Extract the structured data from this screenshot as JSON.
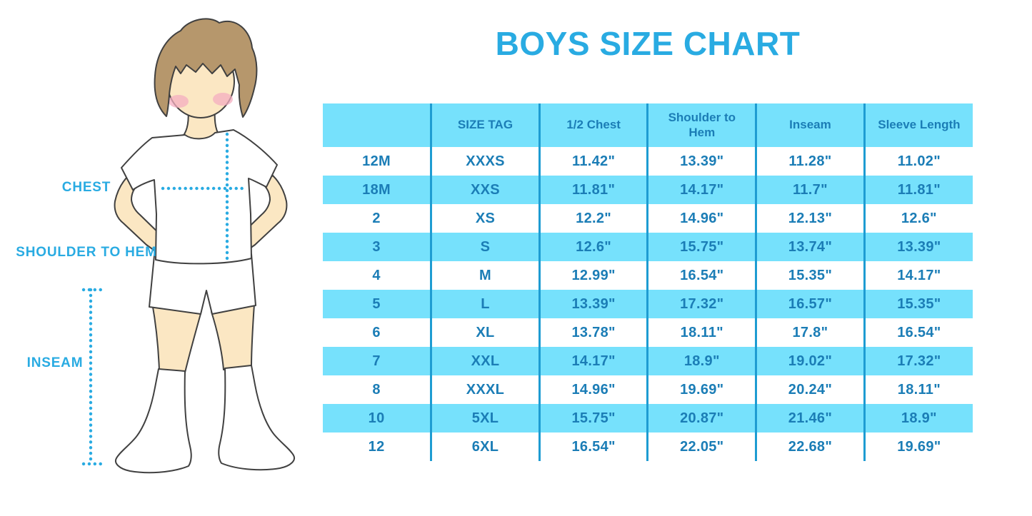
{
  "title": "BOYS SIZE CHART",
  "figure": {
    "chest_label": "CHEST",
    "shoulder_to_hem_label": "SHOULDER TO HEM",
    "inseam_label": "INSEAM"
  },
  "colors": {
    "accent": "#29ABE2",
    "table_text": "#1B7DB6",
    "stripe": "#76E1FC",
    "divider": "#1E9CD2",
    "skin": "#FBE7C3",
    "hair": "#B6976C",
    "blush": "#F4AEC0",
    "outline": "#404040"
  },
  "chart_data": {
    "type": "table",
    "title": "BOYS SIZE CHART",
    "units": "inches",
    "layout": {
      "striped": true,
      "header_background": "#76E1FC",
      "row_alternate_background": "#76E1FC"
    },
    "columns": [
      "",
      "SIZE TAG",
      "1/2 Chest",
      "Shoulder to Hem",
      "Inseam",
      "Sleeve Length"
    ],
    "rows": [
      [
        "12M",
        "XXXS",
        "11.42\"",
        "13.39\"",
        "11.28\"",
        "11.02\""
      ],
      [
        "18M",
        "XXS",
        "11.81\"",
        "14.17\"",
        "11.7\"",
        "11.81\""
      ],
      [
        "2",
        "XS",
        "12.2\"",
        "14.96\"",
        "12.13\"",
        "12.6\""
      ],
      [
        "3",
        "S",
        "12.6\"",
        "15.75\"",
        "13.74\"",
        "13.39\""
      ],
      [
        "4",
        "M",
        "12.99\"",
        "16.54\"",
        "15.35\"",
        "14.17\""
      ],
      [
        "5",
        "L",
        "13.39\"",
        "17.32\"",
        "16.57\"",
        "15.35\""
      ],
      [
        "6",
        "XL",
        "13.78\"",
        "18.11\"",
        "17.8\"",
        "16.54\""
      ],
      [
        "7",
        "XXL",
        "14.17\"",
        "18.9\"",
        "19.02\"",
        "17.32\""
      ],
      [
        "8",
        "XXXL",
        "14.96\"",
        "19.69\"",
        "20.24\"",
        "18.11\""
      ],
      [
        "10",
        "5XL",
        "15.75\"",
        "20.87\"",
        "21.46\"",
        "18.9\""
      ],
      [
        "12",
        "6XL",
        "16.54\"",
        "22.05\"",
        "22.68\"",
        "19.69\""
      ]
    ]
  }
}
